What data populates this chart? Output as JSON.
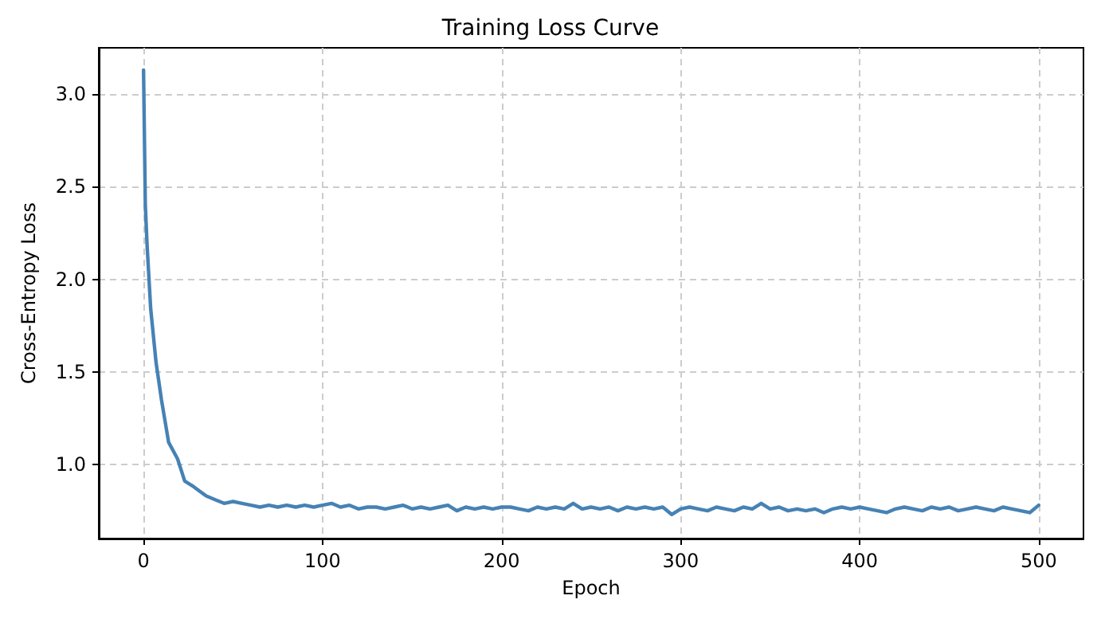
{
  "chart_data": {
    "type": "line",
    "title": "Training Loss Curve",
    "xlabel": "Epoch",
    "ylabel": "Cross-Entropy Loss",
    "x": [
      0,
      1,
      2,
      4,
      7,
      10,
      14,
      19,
      23,
      28,
      35,
      40,
      45,
      50,
      55,
      60,
      65,
      70,
      75,
      80,
      85,
      90,
      95,
      100,
      105,
      110,
      115,
      120,
      125,
      130,
      135,
      140,
      145,
      150,
      155,
      160,
      165,
      170,
      175,
      180,
      185,
      190,
      195,
      200,
      205,
      210,
      215,
      220,
      225,
      230,
      235,
      240,
      245,
      250,
      255,
      260,
      265,
      270,
      275,
      280,
      285,
      290,
      295,
      300,
      305,
      310,
      315,
      320,
      325,
      330,
      335,
      340,
      345,
      350,
      355,
      360,
      365,
      370,
      375,
      380,
      385,
      390,
      395,
      400,
      405,
      410,
      415,
      420,
      425,
      430,
      435,
      440,
      445,
      450,
      455,
      460,
      465,
      470,
      475,
      480,
      485,
      490,
      495,
      500
    ],
    "series": [
      {
        "color": "#4682b4",
        "values": [
          3.13,
          2.4,
          2.18,
          1.84,
          1.55,
          1.35,
          1.12,
          1.03,
          0.91,
          0.88,
          0.83,
          0.81,
          0.79,
          0.8,
          0.79,
          0.78,
          0.77,
          0.78,
          0.77,
          0.78,
          0.77,
          0.78,
          0.77,
          0.78,
          0.79,
          0.77,
          0.78,
          0.76,
          0.77,
          0.77,
          0.76,
          0.77,
          0.78,
          0.76,
          0.77,
          0.76,
          0.77,
          0.78,
          0.75,
          0.77,
          0.76,
          0.77,
          0.76,
          0.77,
          0.77,
          0.76,
          0.75,
          0.77,
          0.76,
          0.77,
          0.76,
          0.79,
          0.76,
          0.77,
          0.76,
          0.77,
          0.75,
          0.77,
          0.76,
          0.77,
          0.76,
          0.77,
          0.73,
          0.76,
          0.77,
          0.76,
          0.75,
          0.77,
          0.76,
          0.75,
          0.77,
          0.76,
          0.79,
          0.76,
          0.77,
          0.75,
          0.76,
          0.75,
          0.76,
          0.74,
          0.76,
          0.77,
          0.76,
          0.77,
          0.76,
          0.75,
          0.74,
          0.76,
          0.77,
          0.76,
          0.75,
          0.77,
          0.76,
          0.77,
          0.75,
          0.76,
          0.77,
          0.76,
          0.75,
          0.77,
          0.76,
          0.75,
          0.74,
          0.78
        ]
      }
    ],
    "xlim": [
      -25,
      525
    ],
    "xticks": [
      0,
      100,
      200,
      300,
      400,
      500
    ],
    "ylim": [
      0.6,
      3.25
    ],
    "yticks": [
      {
        "value": 1,
        "label": "1.0"
      },
      1.5,
      {
        "value": 2,
        "label": "2.0"
      },
      2.5,
      {
        "value": 3,
        "label": "3.0"
      }
    ],
    "grid": true,
    "line_style": "solid",
    "marker": "none"
  }
}
